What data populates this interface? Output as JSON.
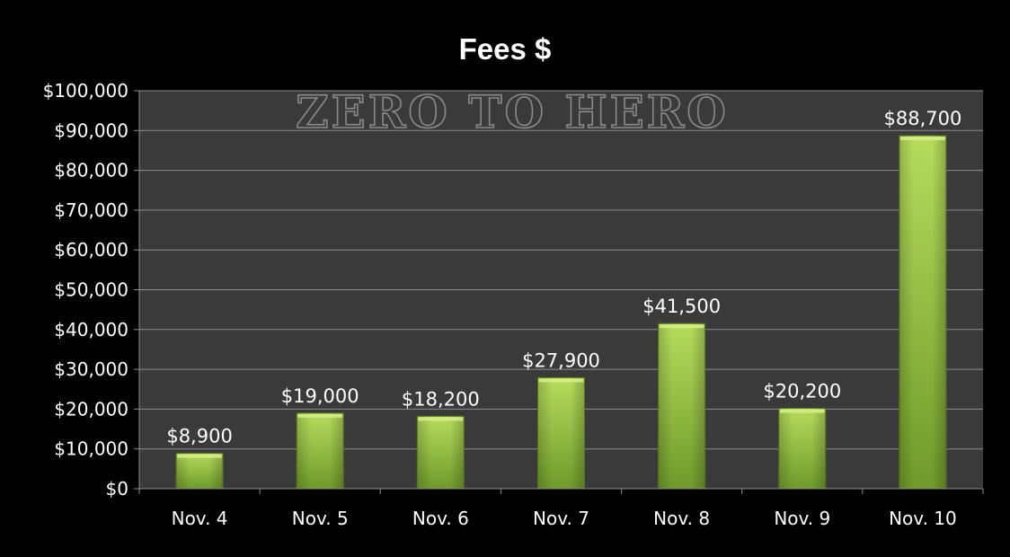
{
  "chart_data": {
    "type": "bar",
    "title": "Fees $",
    "watermark": "ZERO TO HERO",
    "categories": [
      "Nov. 4",
      "Nov. 5",
      "Nov. 6",
      "Nov. 7",
      "Nov. 8",
      "Nov. 9",
      "Nov. 10"
    ],
    "values": [
      8900,
      19000,
      18200,
      27900,
      41500,
      20200,
      88700
    ],
    "data_labels": [
      "$8,900",
      "$19,000",
      "$18,200",
      "$27,900",
      "$41,500",
      "$20,200",
      "$88,700"
    ],
    "yticks": [
      0,
      10000,
      20000,
      30000,
      40000,
      50000,
      60000,
      70000,
      80000,
      90000,
      100000
    ],
    "ytick_labels": [
      "$0",
      "$10,000",
      "$20,000",
      "$30,000",
      "$40,000",
      "$50,000",
      "$60,000",
      "$70,000",
      "$80,000",
      "$90,000",
      "$100,000"
    ],
    "ylim": [
      0,
      100000
    ],
    "xlabel": "",
    "ylabel": "",
    "grid": true,
    "legend": "none",
    "colors": {
      "background": "#000000",
      "plot_area": "#3a3a3a",
      "gridline": "#8c8c8c",
      "bar_light": "#b6dc5c",
      "bar_dark": "#6f9a2a",
      "text": "#ffffff"
    }
  }
}
